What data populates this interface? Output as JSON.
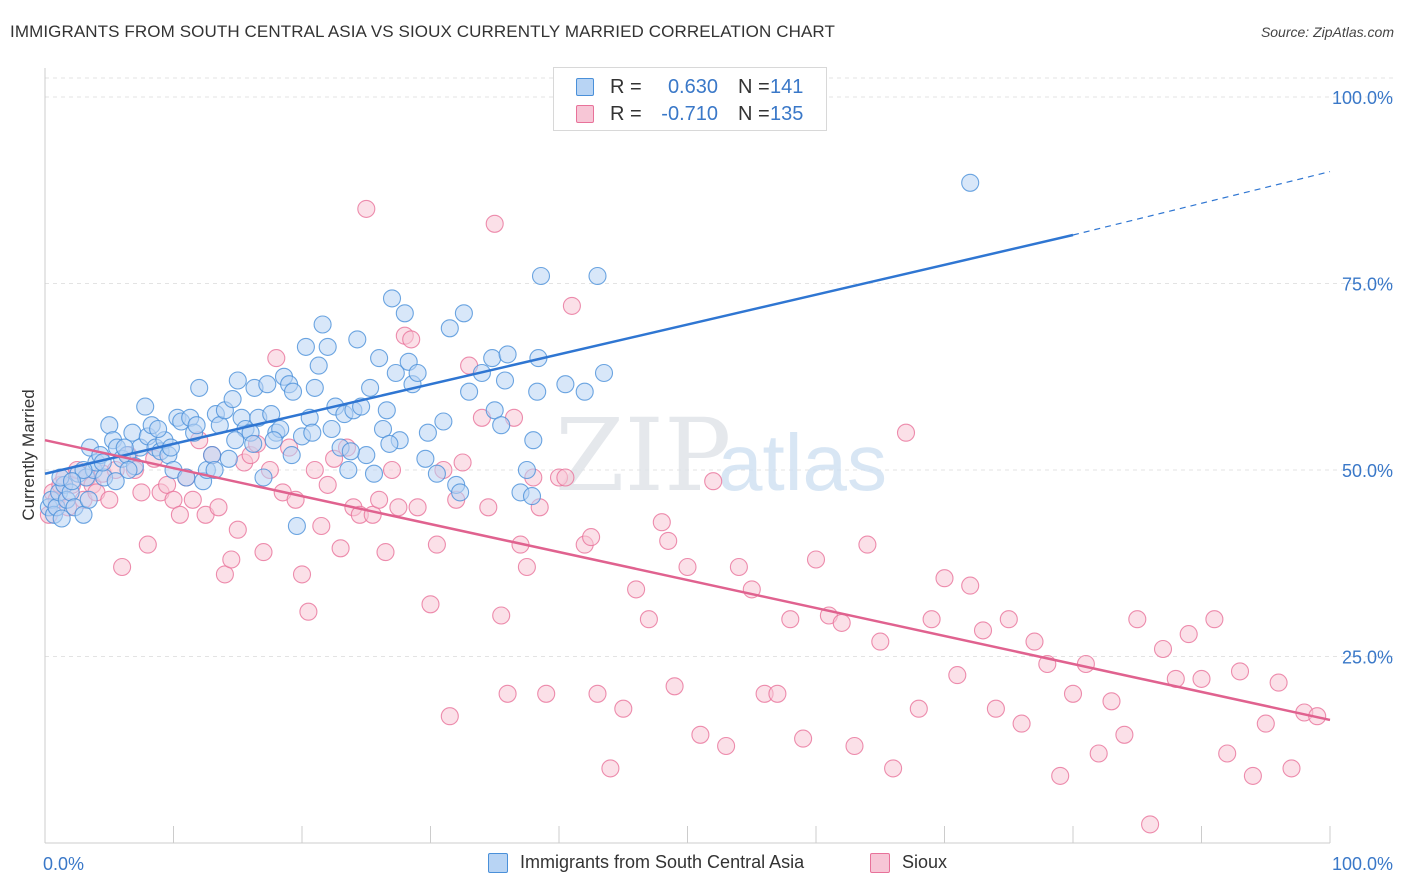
{
  "title": "IMMIGRANTS FROM SOUTH CENTRAL ASIA VS SIOUX CURRENTLY MARRIED CORRELATION CHART",
  "source": "Source: ZipAtlas.com",
  "watermark": {
    "zip": "ZIP",
    "atlas": "atlas"
  },
  "legend": {
    "r_label": "R =",
    "n_label": "N =",
    "rows": [
      {
        "r": "0.630",
        "n": "141",
        "color": "#4a90d9",
        "fill": "#b8d4f4"
      },
      {
        "r": "-0.710",
        "n": "135",
        "color": "#e8729a",
        "fill": "#f7c6d6"
      }
    ]
  },
  "bottom_legend": [
    "Immigrants from South Central Asia",
    "Sioux"
  ],
  "chart_data": {
    "type": "scatter",
    "title": "IMMIGRANTS FROM SOUTH CENTRAL ASIA VS SIOUX CURRENTLY MARRIED CORRELATION CHART",
    "xlabel": "",
    "ylabel": "Currently Married",
    "xlim": [
      0,
      100
    ],
    "ylim": [
      0,
      100
    ],
    "x_tick_labels": [
      "0.0%",
      "100.0%"
    ],
    "y_tick_labels": [
      "25.0%",
      "50.0%",
      "75.0%",
      "100.0%"
    ],
    "y_ticks": [
      25,
      50,
      75,
      100
    ],
    "grid": true,
    "legend_position": "top-center",
    "series": [
      {
        "name": "Immigrants from South Central Asia",
        "color": "#4a90d9",
        "fill": "#b8d4f4",
        "trend": {
          "x0": 0,
          "y0": 49.5,
          "x1": 80,
          "y1": 81.5,
          "dash_to_x": 100,
          "dash_to_y": 90
        },
        "points": [
          [
            0.3,
            45
          ],
          [
            0.5,
            46
          ],
          [
            0.7,
            44
          ],
          [
            0.9,
            45
          ],
          [
            1.1,
            47
          ],
          [
            1.3,
            43.5
          ],
          [
            1.5,
            48
          ],
          [
            1.7,
            46
          ],
          [
            2,
            47
          ],
          [
            2.3,
            45
          ],
          [
            2.6,
            49.5
          ],
          [
            3,
            44
          ],
          [
            3.2,
            49
          ],
          [
            3.5,
            53
          ],
          [
            3.8,
            50
          ],
          [
            4,
            51
          ],
          [
            4.3,
            52
          ],
          [
            4.6,
            49
          ],
          [
            5,
            56
          ],
          [
            5.3,
            54
          ],
          [
            5.6,
            53
          ],
          [
            6,
            51.5
          ],
          [
            6.4,
            52
          ],
          [
            6.8,
            55
          ],
          [
            7,
            50.5
          ],
          [
            7.4,
            53
          ],
          [
            7.8,
            58.5
          ],
          [
            8,
            54.5
          ],
          [
            8.3,
            56
          ],
          [
            8.6,
            53
          ],
          [
            9,
            52.5
          ],
          [
            9.3,
            54
          ],
          [
            9.6,
            52
          ],
          [
            10,
            50
          ],
          [
            10.3,
            57
          ],
          [
            10.6,
            56.5
          ],
          [
            11,
            49
          ],
          [
            11.3,
            57
          ],
          [
            11.6,
            55
          ],
          [
            12,
            61
          ],
          [
            12.3,
            48.5
          ],
          [
            12.6,
            50
          ],
          [
            13,
            52
          ],
          [
            13.3,
            57.5
          ],
          [
            13.6,
            56
          ],
          [
            14,
            58
          ],
          [
            14.3,
            51.5
          ],
          [
            14.6,
            59.5
          ],
          [
            15,
            62
          ],
          [
            15.3,
            57
          ],
          [
            15.6,
            55.5
          ],
          [
            16,
            55
          ],
          [
            16.3,
            61
          ],
          [
            16.6,
            57
          ],
          [
            17,
            49
          ],
          [
            17.3,
            61.5
          ],
          [
            17.6,
            57.5
          ],
          [
            18,
            55
          ],
          [
            18.3,
            55.5
          ],
          [
            18.6,
            62.5
          ],
          [
            19,
            61.5
          ],
          [
            19.3,
            60.5
          ],
          [
            19.6,
            42.5
          ],
          [
            20,
            54.5
          ],
          [
            20.3,
            66.5
          ],
          [
            20.6,
            57
          ],
          [
            21,
            61
          ],
          [
            21.3,
            64
          ],
          [
            21.6,
            69.5
          ],
          [
            22,
            66.5
          ],
          [
            22.3,
            55.5
          ],
          [
            22.6,
            58.5
          ],
          [
            23,
            53
          ],
          [
            23.3,
            57.5
          ],
          [
            23.6,
            50
          ],
          [
            24,
            58
          ],
          [
            24.3,
            67.5
          ],
          [
            24.6,
            58.5
          ],
          [
            25,
            52
          ],
          [
            25.3,
            61
          ],
          [
            25.6,
            49.5
          ],
          [
            26,
            65
          ],
          [
            26.3,
            55.5
          ],
          [
            26.6,
            58
          ],
          [
            27,
            73
          ],
          [
            27.3,
            63
          ],
          [
            27.6,
            54
          ],
          [
            28,
            71
          ],
          [
            28.3,
            64.5
          ],
          [
            28.6,
            61.5
          ],
          [
            29,
            63
          ],
          [
            29.6,
            51.5
          ],
          [
            30.5,
            49.5
          ],
          [
            31,
            56.5
          ],
          [
            31.5,
            69
          ],
          [
            32,
            48
          ],
          [
            32.3,
            47
          ],
          [
            32.6,
            71
          ],
          [
            33,
            60.5
          ],
          [
            34,
            63
          ],
          [
            34.8,
            65
          ],
          [
            35,
            58
          ],
          [
            35.5,
            56
          ],
          [
            36,
            65.5
          ],
          [
            35.8,
            62
          ],
          [
            37,
            47
          ],
          [
            37.5,
            50
          ],
          [
            37.9,
            46.5
          ],
          [
            38,
            54
          ],
          [
            38.3,
            60.5
          ],
          [
            38.4,
            65
          ],
          [
            38.6,
            76
          ],
          [
            40.5,
            61.5
          ],
          [
            42,
            60.5
          ],
          [
            43,
            76
          ],
          [
            43.5,
            63
          ],
          [
            72,
            88.5
          ],
          [
            3,
            50
          ],
          [
            4.5,
            51
          ],
          [
            5.5,
            48.5
          ],
          [
            6.5,
            50
          ],
          [
            9.8,
            53
          ],
          [
            11.8,
            56
          ],
          [
            14.8,
            54
          ],
          [
            17.8,
            54
          ],
          [
            20.8,
            55
          ],
          [
            23.8,
            52.5
          ],
          [
            26.8,
            53.5
          ],
          [
            29.8,
            55
          ],
          [
            1.2,
            49
          ],
          [
            2.1,
            48.5
          ],
          [
            3.4,
            46
          ],
          [
            6.2,
            53
          ],
          [
            8.8,
            55.5
          ],
          [
            13.2,
            50
          ],
          [
            16.2,
            53.5
          ],
          [
            19.2,
            52
          ]
        ]
      },
      {
        "name": "Sioux",
        "color": "#e8729a",
        "fill": "#f7c6d6",
        "trend": {
          "x0": 0,
          "y0": 54,
          "x1": 100,
          "y1": 16.5
        },
        "points": [
          [
            0.3,
            44
          ],
          [
            0.6,
            47
          ],
          [
            0.9,
            46
          ],
          [
            1.2,
            48
          ],
          [
            1.5,
            49
          ],
          [
            1.8,
            45
          ],
          [
            2.1,
            48
          ],
          [
            2.5,
            50
          ],
          [
            3,
            46
          ],
          [
            3.3,
            49
          ],
          [
            3.7,
            48
          ],
          [
            4,
            47
          ],
          [
            4.5,
            49.5
          ],
          [
            5,
            46
          ],
          [
            5.5,
            50
          ],
          [
            6,
            37
          ],
          [
            6.5,
            52
          ],
          [
            7,
            50
          ],
          [
            7.5,
            47
          ],
          [
            8,
            40
          ],
          [
            8.5,
            51.5
          ],
          [
            9,
            47
          ],
          [
            9.5,
            48
          ],
          [
            10,
            46
          ],
          [
            10.5,
            44
          ],
          [
            11,
            49
          ],
          [
            11.5,
            46
          ],
          [
            12,
            54
          ],
          [
            12.5,
            44
          ],
          [
            13,
            52
          ],
          [
            13.5,
            45
          ],
          [
            14,
            36
          ],
          [
            14.5,
            38
          ],
          [
            15,
            42
          ],
          [
            15.5,
            51
          ],
          [
            16,
            52
          ],
          [
            16.5,
            53.5
          ],
          [
            17,
            39
          ],
          [
            17.5,
            50
          ],
          [
            18,
            65
          ],
          [
            18.5,
            47
          ],
          [
            19,
            53
          ],
          [
            19.5,
            46
          ],
          [
            20,
            36
          ],
          [
            20.5,
            31
          ],
          [
            21,
            50
          ],
          [
            21.5,
            42.5
          ],
          [
            22,
            48
          ],
          [
            22.5,
            51.5
          ],
          [
            23,
            39.5
          ],
          [
            23.5,
            53
          ],
          [
            24,
            45
          ],
          [
            24.5,
            44
          ],
          [
            25,
            85
          ],
          [
            25.5,
            44
          ],
          [
            26,
            46
          ],
          [
            26.5,
            39
          ],
          [
            27,
            50
          ],
          [
            27.5,
            45
          ],
          [
            28,
            68
          ],
          [
            28.5,
            67.5
          ],
          [
            29,
            45
          ],
          [
            30,
            32
          ],
          [
            30.5,
            40
          ],
          [
            31,
            50
          ],
          [
            31.5,
            17
          ],
          [
            32,
            46
          ],
          [
            32.5,
            51
          ],
          [
            33,
            64
          ],
          [
            34,
            57
          ],
          [
            34.5,
            45
          ],
          [
            35,
            83
          ],
          [
            35.5,
            30.5
          ],
          [
            36,
            20
          ],
          [
            36.5,
            57
          ],
          [
            37,
            40
          ],
          [
            37.5,
            37
          ],
          [
            38,
            49
          ],
          [
            38.5,
            45
          ],
          [
            39,
            20
          ],
          [
            40,
            49
          ],
          [
            40.5,
            49
          ],
          [
            41,
            72
          ],
          [
            42,
            40
          ],
          [
            42.5,
            41
          ],
          [
            43,
            20
          ],
          [
            44,
            10
          ],
          [
            45,
            18
          ],
          [
            46,
            34
          ],
          [
            47,
            30
          ],
          [
            48,
            43
          ],
          [
            48.5,
            40.5
          ],
          [
            49,
            21
          ],
          [
            50,
            37
          ],
          [
            51,
            14.5
          ],
          [
            52,
            48.5
          ],
          [
            53,
            13
          ],
          [
            54,
            37
          ],
          [
            55,
            34
          ],
          [
            56,
            20
          ],
          [
            57,
            20
          ],
          [
            58,
            30
          ],
          [
            59,
            14
          ],
          [
            60,
            38
          ],
          [
            61,
            30.5
          ],
          [
            62,
            29.5
          ],
          [
            63,
            13
          ],
          [
            64,
            40
          ],
          [
            65,
            27
          ],
          [
            66,
            10
          ],
          [
            67,
            55
          ],
          [
            68,
            18
          ],
          [
            69,
            30
          ],
          [
            70,
            35.5
          ],
          [
            71,
            22.5
          ],
          [
            72,
            34.5
          ],
          [
            73,
            28.5
          ],
          [
            74,
            18
          ],
          [
            75,
            30
          ],
          [
            76,
            16
          ],
          [
            77,
            27
          ],
          [
            78,
            24
          ],
          [
            79,
            9
          ],
          [
            80,
            20
          ],
          [
            81,
            24
          ],
          [
            82,
            12
          ],
          [
            83,
            19
          ],
          [
            84,
            14.5
          ],
          [
            85,
            30
          ],
          [
            86,
            2.5
          ],
          [
            87,
            26
          ],
          [
            88,
            22
          ],
          [
            89,
            28
          ],
          [
            90,
            22
          ],
          [
            91,
            30
          ],
          [
            92,
            12
          ],
          [
            93,
            23
          ],
          [
            94,
            9
          ],
          [
            95,
            16
          ],
          [
            96,
            21.5
          ],
          [
            97,
            10
          ],
          [
            98,
            17.5
          ],
          [
            99,
            17
          ]
        ]
      }
    ]
  }
}
